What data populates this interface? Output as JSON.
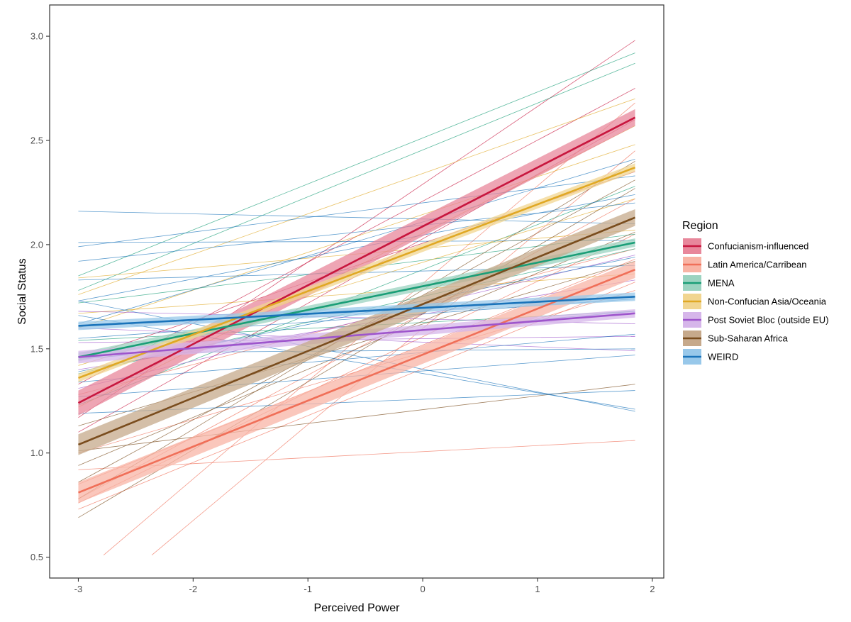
{
  "chart_data": {
    "type": "line",
    "xlabel": "Perceived Power",
    "ylabel": "Social Status",
    "xlim": [
      -3.25,
      2.1
    ],
    "ylim": [
      0.4,
      3.15
    ],
    "x_ticks": [
      "-3",
      "-2",
      "-1",
      "0",
      "1",
      "2"
    ],
    "y_ticks": [
      "0.5",
      "1.0",
      "1.5",
      "2.0",
      "2.5",
      "3.0"
    ],
    "grid": false,
    "legend": {
      "title": "Region",
      "position": "right"
    },
    "series": [
      {
        "name": "Confucianism-influenced",
        "color": "#c8163e",
        "fill": "#e8879b",
        "x": [
          -3.0,
          1.85
        ],
        "y": [
          1.24,
          2.61
        ],
        "se": [
          0.06,
          0.04
        ],
        "countries": [
          [
            [
              -3.0,
              1.17
            ],
            [
              1.85,
              2.98
            ]
          ],
          [
            [
              -3.0,
              1.33
            ],
            [
              1.85,
              2.75
            ]
          ],
          [
            [
              -3.0,
              1.45
            ],
            [
              1.85,
              2.35
            ]
          ],
          [
            [
              -3.0,
              1.1
            ],
            [
              1.85,
              2.6
            ]
          ]
        ]
      },
      {
        "name": "Latin America/Carribean",
        "color": "#f06f58",
        "fill": "#f8b4a5",
        "x": [
          -3.0,
          1.85
        ],
        "y": [
          0.81,
          1.88
        ],
        "se": [
          0.05,
          0.04
        ],
        "countries": [
          [
            [
              -3.0,
              0.92
            ],
            [
              1.85,
              1.06
            ]
          ],
          [
            [
              -2.78,
              0.51
            ],
            [
              1.85,
              2.68
            ]
          ],
          [
            [
              -2.36,
              0.51
            ],
            [
              1.85,
              2.45
            ]
          ],
          [
            [
              -3.0,
              0.76
            ],
            [
              1.85,
              2.05
            ]
          ],
          [
            [
              -3.0,
              0.73
            ],
            [
              1.85,
              1.82
            ]
          ],
          [
            [
              -3.0,
              0.85
            ],
            [
              1.85,
              1.93
            ]
          ],
          [
            [
              -3.0,
              1.0
            ],
            [
              1.85,
              1.78
            ]
          ],
          [
            [
              -3.0,
              0.78
            ],
            [
              1.85,
              2.22
            ]
          ],
          [
            [
              -3.0,
              1.28
            ],
            [
              1.85,
              1.98
            ]
          ]
        ]
      },
      {
        "name": "MENA",
        "color": "#1a9e77",
        "fill": "#9bd3c0",
        "x": [
          -3.0,
          1.85
        ],
        "y": [
          1.46,
          2.01
        ],
        "se": [
          0.02,
          0.02
        ],
        "countries": [
          [
            [
              -3.0,
              1.78
            ],
            [
              1.85,
              2.87
            ]
          ],
          [
            [
              -3.0,
              1.85
            ],
            [
              1.85,
              2.92
            ]
          ],
          [
            [
              -3.0,
              1.54
            ],
            [
              1.85,
              1.68
            ]
          ],
          [
            [
              -3.0,
              1.23
            ],
            [
              1.85,
              2.28
            ]
          ],
          [
            [
              -3.0,
              1.72
            ],
            [
              1.85,
              2.05
            ]
          ],
          [
            [
              -3.0,
              1.38
            ],
            [
              1.85,
              1.98
            ]
          ]
        ]
      },
      {
        "name": "Non-Confucian Asia/Oceania",
        "color": "#e0a824",
        "fill": "#f1d590",
        "x": [
          -3.0,
          1.85
        ],
        "y": [
          1.36,
          2.37
        ],
        "se": [
          0.02,
          0.02
        ],
        "countries": [
          [
            [
              -3.0,
              1.76
            ],
            [
              1.85,
              2.7
            ]
          ],
          [
            [
              -3.0,
              1.6
            ],
            [
              1.85,
              2.48
            ]
          ],
          [
            [
              -3.0,
              1.84
            ],
            [
              1.85,
              2.07
            ]
          ],
          [
            [
              -3.0,
              1.22
            ],
            [
              1.85,
              2.57
            ]
          ],
          [
            [
              -3.0,
              1.42
            ],
            [
              1.85,
              2.22
            ]
          ],
          [
            [
              -3.0,
              1.67
            ],
            [
              1.85,
              1.86
            ]
          ]
        ]
      },
      {
        "name": "Post Soviet Bloc (outside EU)",
        "color": "#9e55cc",
        "fill": "#d6b6ea",
        "x": [
          -3.0,
          1.85
        ],
        "y": [
          1.46,
          1.67
        ],
        "se": [
          0.03,
          0.02
        ],
        "countries": [
          [
            [
              -3.0,
              1.68
            ],
            [
              1.85,
              1.62
            ]
          ],
          [
            [
              -3.0,
              1.4
            ],
            [
              1.85,
              1.83
            ]
          ],
          [
            [
              -3.0,
              1.53
            ],
            [
              1.85,
              1.56
            ]
          ],
          [
            [
              -3.0,
              1.31
            ],
            [
              1.85,
              1.95
            ]
          ],
          [
            [
              -3.0,
              1.6
            ],
            [
              1.85,
              1.49
            ]
          ]
        ]
      },
      {
        "name": "Sub-Saharan Africa",
        "color": "#7a4d1e",
        "fill": "#c6a98b",
        "x": [
          -3.0,
          1.85
        ],
        "y": [
          1.04,
          2.13
        ],
        "se": [
          0.05,
          0.04
        ],
        "countries": [
          [
            [
              -3.0,
              0.69
            ],
            [
              1.85,
              2.27
            ]
          ],
          [
            [
              -3.0,
              0.86
            ],
            [
              1.85,
              2.31
            ]
          ],
          [
            [
              -3.0,
              1.01
            ],
            [
              1.85,
              1.33
            ]
          ],
          [
            [
              -3.0,
              0.94
            ],
            [
              1.85,
              2.06
            ]
          ],
          [
            [
              -3.0,
              1.13
            ],
            [
              1.85,
              1.92
            ]
          ],
          [
            [
              -3.0,
              0.78
            ],
            [
              1.85,
              2.4
            ]
          ]
        ]
      },
      {
        "name": "WEIRD",
        "color": "#1a73ba",
        "fill": "#98c8ea",
        "x": [
          -3.0,
          1.85
        ],
        "y": [
          1.61,
          1.75
        ],
        "se": [
          0.02,
          0.02
        ],
        "countries": [
          [
            [
              -3.0,
              2.16
            ],
            [
              1.85,
              2.1
            ]
          ],
          [
            [
              -3.0,
              2.01
            ],
            [
              1.85,
              2.02
            ]
          ],
          [
            [
              -3.0,
              1.99
            ],
            [
              1.85,
              2.33
            ]
          ],
          [
            [
              -3.0,
              1.92
            ],
            [
              1.85,
              2.2
            ]
          ],
          [
            [
              -3.0,
              1.73
            ],
            [
              1.85,
              2.24
            ]
          ],
          [
            [
              -3.0,
              1.62
            ],
            [
              1.85,
              2.41
            ]
          ],
          [
            [
              -3.0,
              1.66
            ],
            [
              1.85,
              1.21
            ]
          ],
          [
            [
              -3.0,
              1.73
            ],
            [
              1.85,
              1.2
            ]
          ],
          [
            [
              -3.0,
              1.48
            ],
            [
              1.85,
              1.5
            ]
          ],
          [
            [
              -3.0,
              1.55
            ],
            [
              1.85,
              1.74
            ]
          ],
          [
            [
              -3.0,
              1.34
            ],
            [
              1.85,
              1.57
            ]
          ],
          [
            [
              -3.0,
              1.39
            ],
            [
              1.85,
              1.94
            ]
          ],
          [
            [
              -3.0,
              1.19
            ],
            [
              1.85,
              1.3
            ]
          ],
          [
            [
              -3.0,
              1.45
            ],
            [
              1.85,
              1.68
            ]
          ],
          [
            [
              -3.0,
              1.83
            ],
            [
              1.85,
              1.9
            ]
          ],
          [
            [
              -3.0,
              1.27
            ],
            [
              1.85,
              1.47
            ]
          ]
        ]
      }
    ]
  }
}
